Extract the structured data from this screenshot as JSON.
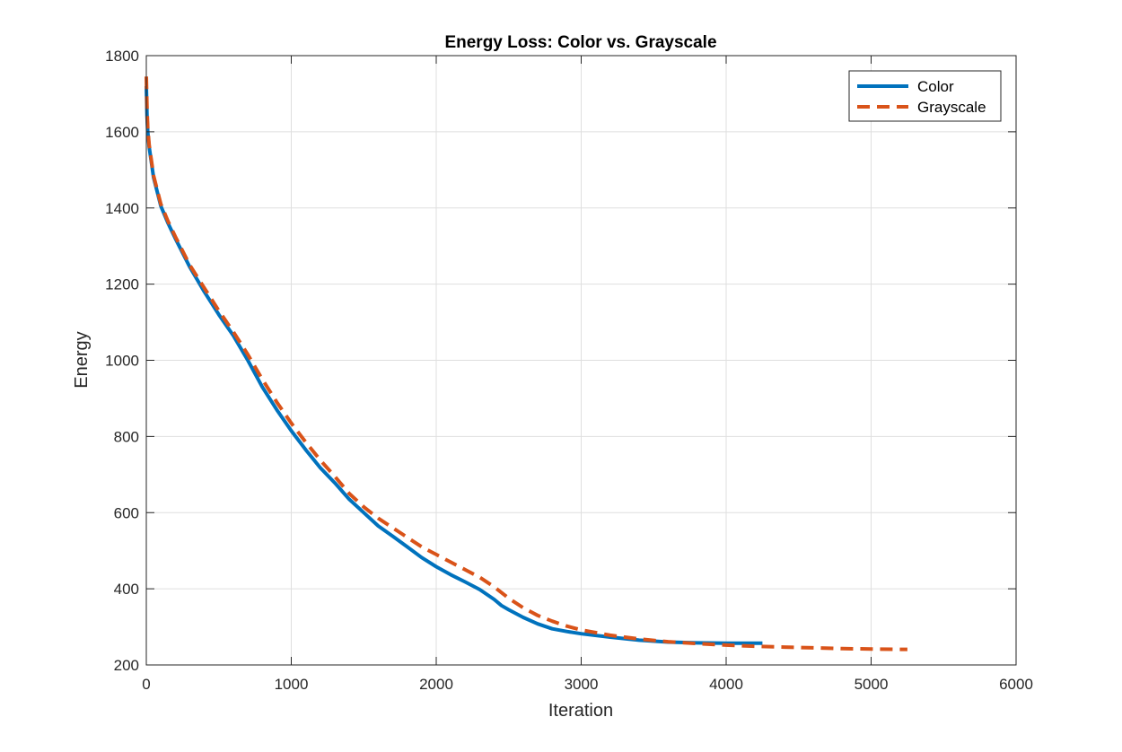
{
  "chart_data": {
    "type": "line",
    "title": "Energy Loss: Color vs. Grayscale",
    "xlabel": "Iteration",
    "ylabel": "Energy",
    "xlim": [
      0,
      6000
    ],
    "ylim": [
      200,
      1800
    ],
    "xticks": [
      0,
      1000,
      2000,
      3000,
      4000,
      5000,
      6000
    ],
    "yticks": [
      200,
      400,
      600,
      800,
      1000,
      1200,
      1400,
      1600,
      1800
    ],
    "grid": true,
    "legend_position": "top-right",
    "series": [
      {
        "name": "Color",
        "color": "#0072BD",
        "line_style": "solid",
        "x": [
          0,
          5,
          10,
          20,
          50,
          100,
          150,
          200,
          300,
          400,
          500,
          600,
          700,
          800,
          900,
          1000,
          1100,
          1200,
          1300,
          1400,
          1500,
          1600,
          1700,
          1800,
          1900,
          2000,
          2100,
          2200,
          2300,
          2400,
          2450,
          2500,
          2600,
          2700,
          2800,
          2900,
          3000,
          3200,
          3400,
          3600,
          3800,
          4000,
          4100,
          4250
        ],
        "values": [
          1720,
          1640,
          1600,
          1560,
          1480,
          1405,
          1360,
          1320,
          1245,
          1180,
          1120,
          1065,
          1000,
          930,
          870,
          815,
          765,
          718,
          678,
          635,
          600,
          565,
          538,
          510,
          482,
          458,
          437,
          418,
          398,
          372,
          356,
          345,
          325,
          308,
          295,
          288,
          282,
          273,
          265,
          260,
          258,
          257,
          257,
          257
        ]
      },
      {
        "name": "Grayscale",
        "color": "#D95319",
        "line_style": "dashed",
        "x": [
          0,
          5,
          10,
          20,
          50,
          100,
          150,
          200,
          300,
          400,
          500,
          600,
          700,
          800,
          900,
          1000,
          1100,
          1200,
          1300,
          1400,
          1500,
          1600,
          1700,
          1800,
          1900,
          2000,
          2100,
          2200,
          2300,
          2400,
          2500,
          2600,
          2700,
          2800,
          2900,
          3000,
          3200,
          3400,
          3600,
          3800,
          4000,
          4200,
          4400,
          4600,
          4800,
          5000,
          5200,
          5250
        ],
        "values": [
          1745,
          1660,
          1610,
          1565,
          1485,
          1410,
          1365,
          1325,
          1250,
          1190,
          1130,
          1075,
          1015,
          950,
          890,
          835,
          785,
          738,
          695,
          650,
          615,
          585,
          560,
          535,
          510,
          490,
          470,
          450,
          430,
          405,
          375,
          350,
          330,
          315,
          302,
          292,
          278,
          268,
          261,
          256,
          252,
          249,
          247,
          245,
          243,
          242,
          241,
          241
        ]
      }
    ]
  }
}
